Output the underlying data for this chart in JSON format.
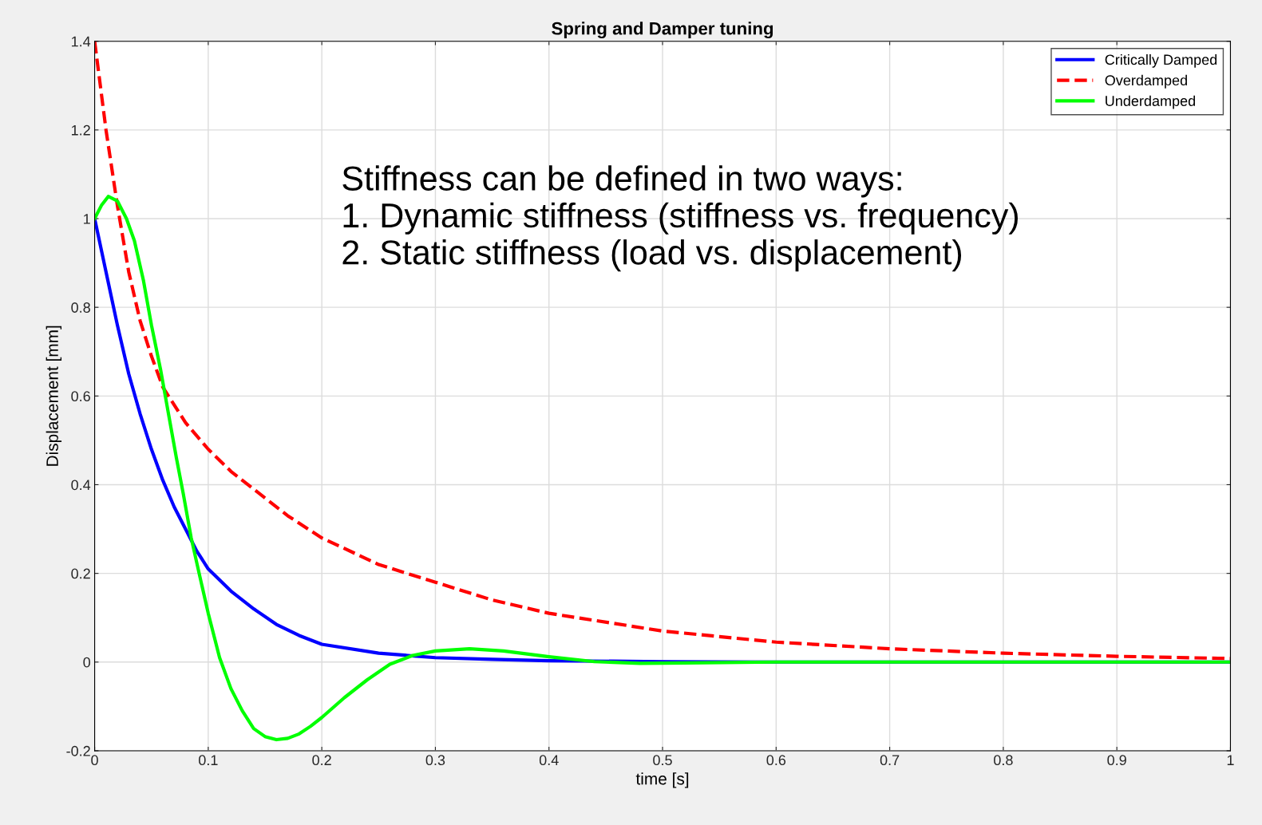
{
  "chart_data": {
    "type": "line",
    "title": "Spring and Damper tuning",
    "xlabel": "time [s]",
    "ylabel": "Displacement [mm]",
    "xlim": [
      0,
      1
    ],
    "ylim": [
      -0.2,
      1.4
    ],
    "xticks": [
      0,
      0.1,
      0.2,
      0.3,
      0.4,
      0.5,
      0.6,
      0.7,
      0.8,
      0.9,
      1
    ],
    "yticks": [
      -0.2,
      0,
      0.2,
      0.4,
      0.6,
      0.8,
      1,
      1.2,
      1.4
    ],
    "grid": true,
    "legend": "top right",
    "line_style": "solid",
    "marker": "none",
    "annotations": [
      "Stiffness can be defined in two ways:\n1. Dynamic stiffness (stiffness vs. frequency)\n2. Static stiffness (load vs. displacement)"
    ],
    "series": [
      {
        "name": "Critically Damped",
        "color": "#0000ff",
        "x": [
          0,
          0.01,
          0.02,
          0.03,
          0.04,
          0.05,
          0.06,
          0.07,
          0.08,
          0.09,
          0.1,
          0.12,
          0.14,
          0.16,
          0.18,
          0.2,
          0.25,
          0.3,
          0.35,
          0.4,
          0.5,
          0.6,
          0.8,
          1
        ],
        "values": [
          1,
          0.88,
          0.76,
          0.65,
          0.56,
          0.48,
          0.41,
          0.35,
          0.3,
          0.25,
          0.21,
          0.16,
          0.12,
          0.085,
          0.06,
          0.04,
          0.02,
          0.01,
          0.006,
          0.003,
          0.001,
          0,
          0,
          0
        ]
      },
      {
        "name": "Overdamped",
        "color": "#ff0000",
        "line_style": "dashed",
        "x": [
          0,
          0.01,
          0.02,
          0.03,
          0.04,
          0.05,
          0.06,
          0.08,
          0.1,
          0.12,
          0.15,
          0.17,
          0.2,
          0.25,
          0.3,
          0.35,
          0.4,
          0.5,
          0.6,
          0.7,
          0.8,
          0.9,
          1
        ],
        "values": [
          1.4,
          1.2,
          1.03,
          0.88,
          0.77,
          0.69,
          0.62,
          0.54,
          0.48,
          0.43,
          0.37,
          0.33,
          0.28,
          0.22,
          0.18,
          0.14,
          0.11,
          0.07,
          0.045,
          0.03,
          0.02,
          0.013,
          0.008
        ]
      },
      {
        "name": "Underdamped",
        "color": "#00ff00",
        "x": [
          0,
          0.006,
          0.012,
          0.02,
          0.028,
          0.035,
          0.043,
          0.05,
          0.058,
          0.065,
          0.072,
          0.078,
          0.085,
          0.092,
          0.1,
          0.11,
          0.12,
          0.13,
          0.14,
          0.15,
          0.16,
          0.17,
          0.18,
          0.19,
          0.2,
          0.22,
          0.24,
          0.26,
          0.28,
          0.3,
          0.33,
          0.36,
          0.4,
          0.44,
          0.48,
          0.52,
          0.6,
          0.8,
          1
        ],
        "values": [
          1,
          1.03,
          1.05,
          1.04,
          1.0,
          0.95,
          0.86,
          0.76,
          0.66,
          0.56,
          0.46,
          0.38,
          0.28,
          0.2,
          0.11,
          0.01,
          -0.06,
          -0.11,
          -0.15,
          -0.168,
          -0.175,
          -0.172,
          -0.162,
          -0.145,
          -0.125,
          -0.08,
          -0.04,
          -0.005,
          0.015,
          0.025,
          0.03,
          0.025,
          0.012,
          0.001,
          -0.003,
          -0.002,
          0,
          0,
          0
        ]
      }
    ]
  }
}
